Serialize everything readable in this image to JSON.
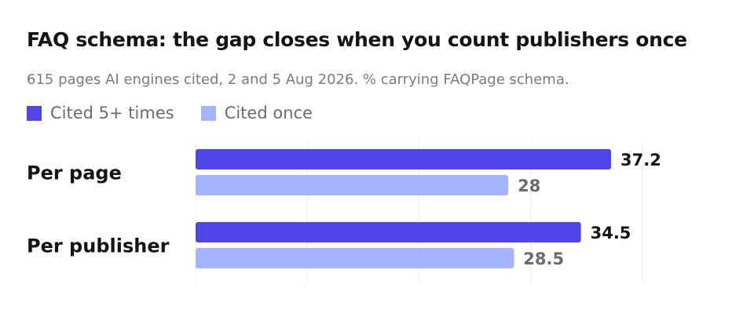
{
  "chart_data": {
    "type": "bar",
    "orientation": "horizontal",
    "title": "FAQ schema: the gap closes when you count publishers once",
    "subtitle": "615 pages AI engines cited, 2 and 5 Aug 2026. % carrying FAQPage schema.",
    "categories": [
      "Per page",
      "Per publisher"
    ],
    "series": [
      {
        "name": "Cited 5+ times",
        "values": [
          37.2,
          34.5
        ],
        "color": "#4f46e5",
        "label_color": "#141414"
      },
      {
        "name": "Cited once",
        "values": [
          28,
          28.5
        ],
        "color": "#a5b4fc",
        "label_color": "#6b6b6b"
      }
    ],
    "xlim": [
      0,
      40
    ],
    "grid": true,
    "legend_position": "top-left",
    "xlabel": "",
    "ylabel": ""
  }
}
